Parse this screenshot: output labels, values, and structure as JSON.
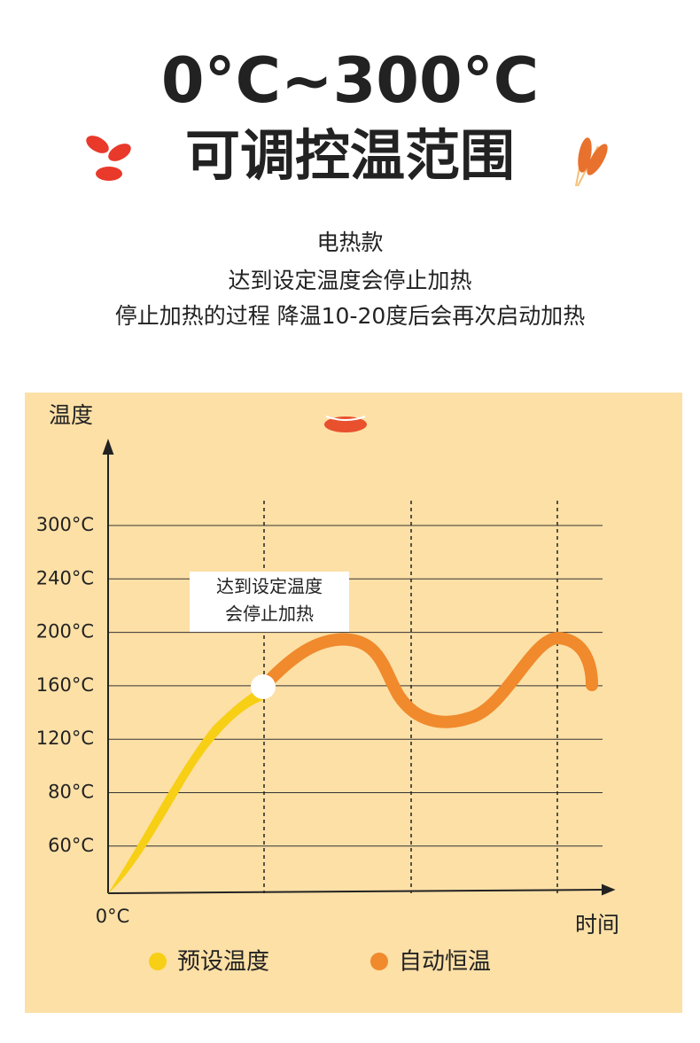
{
  "header": {
    "title": "0°C~300°C",
    "subtitle": "可调控温范围"
  },
  "description": [
    "电热款",
    "达到设定温度会停止加热",
    "停止加热的过程 降温10-20度后会再次启动加热"
  ],
  "diagram": {
    "y_label": "温度",
    "x_label": "时间",
    "origin": "0°C",
    "levels": [
      "300°C",
      "240°C",
      "200°C",
      "160°C",
      "120°C",
      "80°C",
      "60°C"
    ],
    "callout": [
      "达到设定温度",
      "会停止加热"
    ],
    "legend": [
      "预设温度",
      "自动恒温"
    ]
  }
}
